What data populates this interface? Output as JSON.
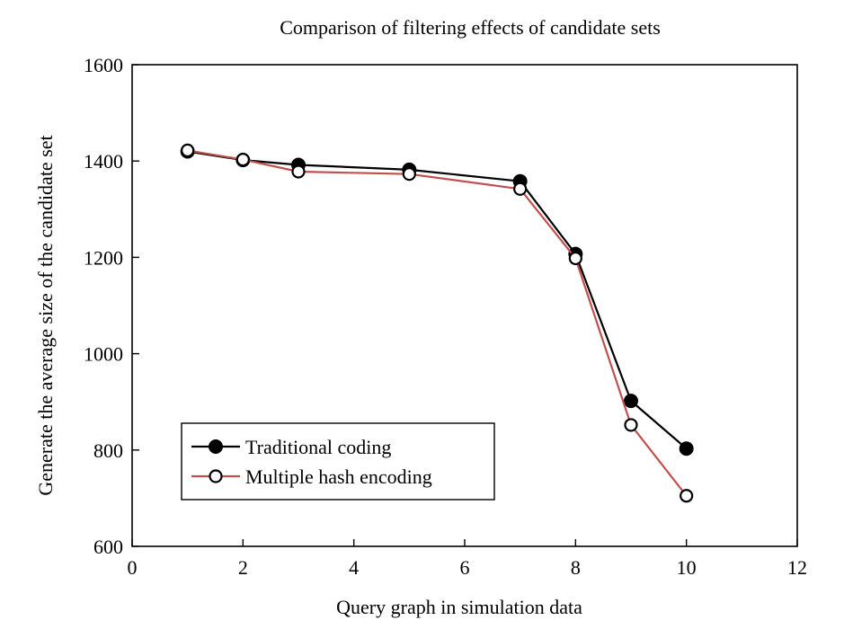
{
  "chart_data": {
    "type": "line",
    "title": "Comparison of filtering effects of candidate sets",
    "xlabel": "Query graph in simulation data",
    "ylabel": "Generate the average size of the candidate set",
    "xlim": [
      0,
      12
    ],
    "ylim": [
      600,
      1600
    ],
    "xticks": [
      0,
      2,
      4,
      6,
      8,
      10,
      12
    ],
    "yticks": [
      600,
      800,
      1000,
      1200,
      1400,
      1600
    ],
    "grid": false,
    "legend_position": "bottom-left",
    "series": [
      {
        "name": "Traditional coding",
        "marker": "filled-circle",
        "color": "#000000",
        "x": [
          1,
          2,
          3,
          5,
          7,
          8,
          9,
          10
        ],
        "y": [
          1420,
          1402,
          1392,
          1382,
          1358,
          1207,
          902,
          803
        ]
      },
      {
        "name": "Multiple hash encoding",
        "marker": "open-circle",
        "color": "#c0504d",
        "x": [
          1,
          2,
          3,
          5,
          7,
          8,
          9,
          10
        ],
        "y": [
          1422,
          1403,
          1378,
          1373,
          1342,
          1198,
          852,
          705
        ]
      }
    ]
  }
}
